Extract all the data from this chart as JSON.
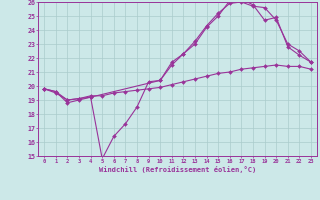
{
  "xlabel": "Windchill (Refroidissement éolien,°C)",
  "bg_color": "#cce8e8",
  "grid_color": "#aacccc",
  "line_color": "#993399",
  "xlim": [
    -0.5,
    23.5
  ],
  "ylim": [
    15,
    26
  ],
  "xticks": [
    0,
    1,
    2,
    3,
    4,
    5,
    6,
    7,
    8,
    9,
    10,
    11,
    12,
    13,
    14,
    15,
    16,
    17,
    18,
    19,
    20,
    21,
    22,
    23
  ],
  "yticks": [
    15,
    16,
    17,
    18,
    19,
    20,
    21,
    22,
    23,
    24,
    25,
    26
  ],
  "curve1_x": [
    0,
    1,
    2,
    3,
    4,
    5,
    6,
    7,
    8,
    9,
    10,
    11,
    12,
    13,
    14,
    15,
    16,
    17,
    18,
    19,
    20,
    21,
    22,
    23
  ],
  "curve1_y": [
    19.8,
    19.6,
    18.8,
    19.0,
    19.2,
    14.8,
    16.4,
    17.3,
    18.5,
    20.3,
    20.4,
    21.7,
    22.3,
    23.0,
    24.2,
    25.0,
    26.1,
    26.2,
    25.8,
    24.7,
    24.9,
    22.8,
    22.2,
    21.7
  ],
  "curve2_x": [
    0,
    1,
    2,
    3,
    4,
    5,
    6,
    7,
    8,
    9,
    10,
    11,
    12,
    13,
    14,
    15,
    16,
    17,
    18,
    19,
    20,
    21,
    22,
    23
  ],
  "curve2_y": [
    19.8,
    19.5,
    19.0,
    19.1,
    19.3,
    19.3,
    19.5,
    19.6,
    19.7,
    19.8,
    19.9,
    20.1,
    20.3,
    20.5,
    20.7,
    20.9,
    21.0,
    21.2,
    21.3,
    21.4,
    21.5,
    21.4,
    21.4,
    21.2
  ],
  "curve3_x": [
    0,
    1,
    2,
    3,
    4,
    10,
    11,
    12,
    13,
    14,
    15,
    16,
    17,
    18,
    19,
    20,
    21,
    22,
    23
  ],
  "curve3_y": [
    19.8,
    19.6,
    19.0,
    19.1,
    19.2,
    20.4,
    21.5,
    22.3,
    23.2,
    24.3,
    25.2,
    25.9,
    26.0,
    25.7,
    25.6,
    24.7,
    23.0,
    22.5,
    21.7
  ]
}
